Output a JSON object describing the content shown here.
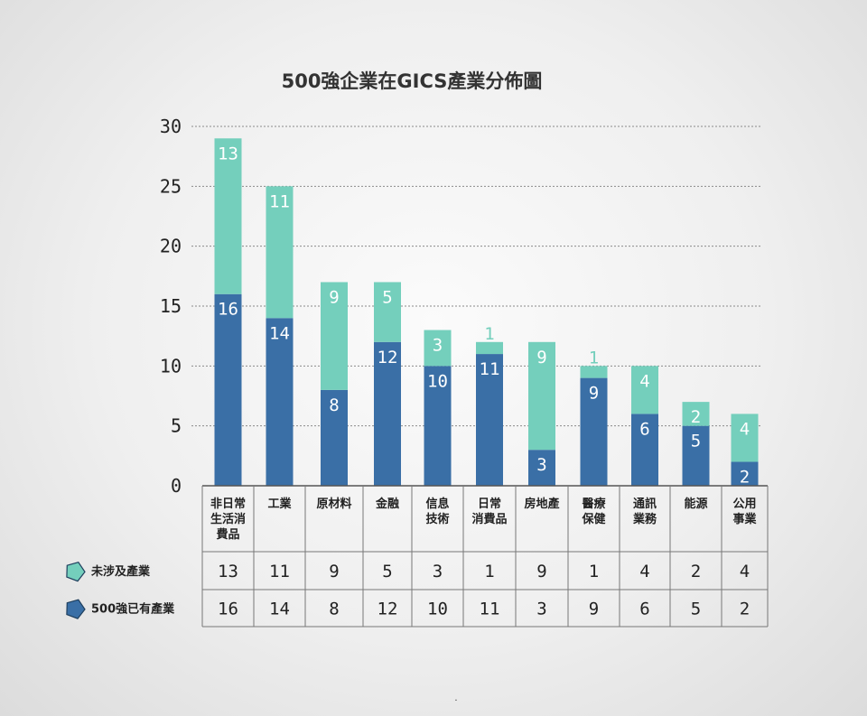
{
  "chart_data": {
    "type": "bar",
    "stacked": true,
    "title": "500強企業在GICS產業分佈圖",
    "categories": [
      [
        "非日常",
        "生活消",
        "費品"
      ],
      [
        "工業"
      ],
      [
        "原材料"
      ],
      [
        "金融"
      ],
      [
        "信息",
        "技術"
      ],
      [
        "日常",
        "消費品"
      ],
      [
        "房地產"
      ],
      [
        "醫療",
        "保健"
      ],
      [
        "通訊",
        "業務"
      ],
      [
        "能源"
      ],
      [
        "公用",
        "事業"
      ]
    ],
    "series": [
      {
        "name": "500強已有產業",
        "color": "#3a6fa6",
        "values": [
          16,
          14,
          8,
          12,
          10,
          11,
          3,
          9,
          6,
          5,
          2
        ]
      },
      {
        "name": "未涉及產業",
        "color": "#74cfbc",
        "values": [
          13,
          11,
          9,
          5,
          3,
          1,
          9,
          1,
          4,
          2,
          4
        ]
      }
    ],
    "ylim": [
      0,
      30
    ],
    "yticks": [
      0,
      5,
      10,
      15,
      20,
      25,
      30
    ],
    "grid": true,
    "legend": "bottom-left data table",
    "footnote": "."
  }
}
